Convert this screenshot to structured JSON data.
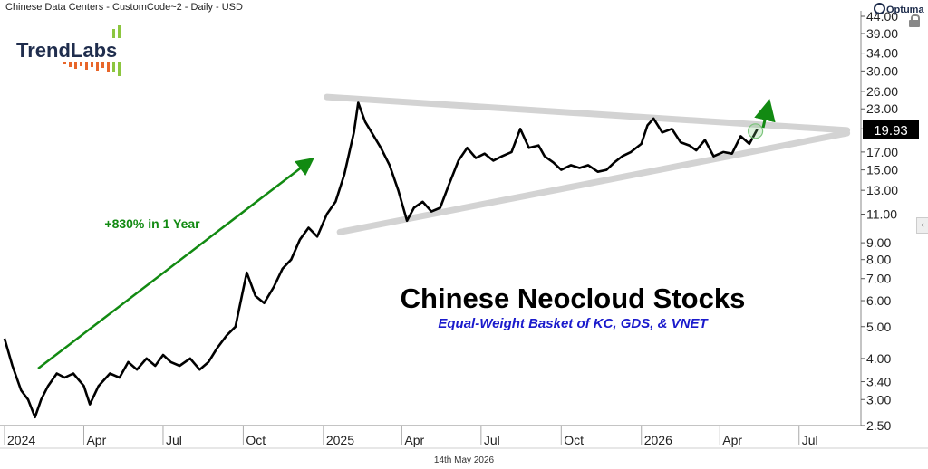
{
  "header": {
    "series_label": "Chinese Data Centers - CustomCode~2 - Daily - USD",
    "brand": "Optuma"
  },
  "logo": {
    "text": "TrendLabs"
  },
  "footer": {
    "date": "14th May 2026"
  },
  "price_label": {
    "value": "19.93"
  },
  "colors": {
    "line": "#000000",
    "arrow": "#128a12",
    "trend": "#d3d3d3",
    "last_price_bg": "#000000",
    "subtitle": "#1a1acc"
  },
  "chart_data": {
    "type": "line",
    "title": "Chinese Neocloud Stocks",
    "subtitle": "Equal-Weight Basket of KC, GDS, & VNET",
    "annotation": "+830% in 1 Year",
    "y_scale": "log",
    "ylim": [
      2.5,
      44
    ],
    "y_ticks": [
      2.5,
      3.0,
      3.4,
      4.0,
      5.0,
      6.0,
      7.0,
      8.0,
      9.0,
      11.0,
      13.0,
      15.0,
      17.0,
      20.0,
      23.0,
      26.0,
      30.0,
      34.0,
      39.0,
      44.0
    ],
    "y_tick_labels": [
      "2.50",
      "3.00",
      "3.40",
      "4.00",
      "5.00",
      "6.00",
      "7.00",
      "8.00",
      "9.00",
      "11.00",
      "13.00",
      "15.00",
      "17.00",
      "20.00",
      "23.00",
      "26.00",
      "30.00",
      "34.00",
      "39.00",
      "44.00"
    ],
    "x_tick_labels": [
      "2024",
      "Apr",
      "Jul",
      "Oct",
      "2025",
      "Apr",
      "Jul",
      "Oct",
      "2026",
      "Apr",
      "Jul"
    ],
    "x_tick_dates": [
      "2024-01-01",
      "2024-04-01",
      "2024-07-01",
      "2024-10-01",
      "2025-01-01",
      "2025-04-01",
      "2025-07-01",
      "2025-10-01",
      "2026-01-01",
      "2026-04-01",
      "2026-07-01"
    ],
    "xlim": [
      "2024-01-01",
      "2026-09-10"
    ],
    "last_value": 19.93,
    "series": [
      {
        "x": [
          "2024-01-01",
          "2024-01-10",
          "2024-01-20",
          "2024-01-28",
          "2024-02-05",
          "2024-02-12",
          "2024-02-20",
          "2024-03-01",
          "2024-03-10",
          "2024-03-20",
          "2024-04-01",
          "2024-04-08",
          "2024-04-18",
          "2024-05-01",
          "2024-05-12",
          "2024-05-22",
          "2024-06-01",
          "2024-06-12",
          "2024-06-22",
          "2024-07-01",
          "2024-07-10",
          "2024-07-20",
          "2024-08-01",
          "2024-08-12",
          "2024-08-22",
          "2024-09-01",
          "2024-09-12",
          "2024-09-22",
          "2024-09-30",
          "2024-10-05",
          "2024-10-15",
          "2024-10-25",
          "2024-11-05",
          "2024-11-15",
          "2024-11-25",
          "2024-12-05",
          "2024-12-15",
          "2024-12-25",
          "2025-01-05",
          "2025-01-15",
          "2025-01-25",
          "2025-02-05",
          "2025-02-10",
          "2025-02-18",
          "2025-02-28",
          "2025-03-08",
          "2025-03-18",
          "2025-03-28",
          "2025-04-07",
          "2025-04-15",
          "2025-04-25",
          "2025-05-05",
          "2025-05-15",
          "2025-05-25",
          "2025-06-05",
          "2025-06-15",
          "2025-06-25",
          "2025-07-05",
          "2025-07-15",
          "2025-07-25",
          "2025-08-05",
          "2025-08-15",
          "2025-08-25",
          "2025-09-05",
          "2025-09-12",
          "2025-09-22",
          "2025-10-01",
          "2025-10-12",
          "2025-10-22",
          "2025-11-01",
          "2025-11-12",
          "2025-11-22",
          "2025-12-01",
          "2025-12-10",
          "2025-12-20",
          "2026-01-01",
          "2026-01-08",
          "2026-01-15",
          "2026-01-25",
          "2026-02-05",
          "2026-02-15",
          "2026-02-25",
          "2026-03-05",
          "2026-03-15",
          "2026-03-25",
          "2026-04-05",
          "2026-04-15",
          "2026-04-25",
          "2026-05-05",
          "2026-05-14"
        ],
        "values": [
          4.6,
          3.8,
          3.2,
          3.0,
          2.65,
          3.0,
          3.3,
          3.6,
          3.5,
          3.6,
          3.3,
          2.9,
          3.3,
          3.6,
          3.5,
          3.9,
          3.7,
          4.0,
          3.8,
          4.1,
          3.9,
          3.8,
          4.0,
          3.7,
          3.9,
          4.3,
          4.7,
          5.0,
          6.3,
          7.3,
          6.2,
          5.9,
          6.6,
          7.5,
          8.0,
          9.2,
          10.0,
          9.4,
          11.0,
          12.0,
          14.5,
          19.5,
          24.0,
          21.0,
          19.0,
          17.5,
          15.5,
          13.0,
          10.5,
          11.5,
          12.0,
          11.2,
          11.5,
          13.5,
          16.0,
          17.5,
          16.3,
          16.8,
          16.0,
          16.5,
          17.0,
          20.0,
          17.5,
          17.8,
          16.5,
          15.8,
          15.0,
          15.5,
          15.2,
          15.5,
          14.8,
          15.0,
          15.8,
          16.5,
          17.0,
          18.0,
          20.5,
          21.5,
          19.5,
          20.0,
          18.2,
          17.8,
          17.2,
          18.5,
          16.5,
          17.0,
          16.8,
          19.0,
          18.0,
          19.93
        ]
      }
    ]
  }
}
